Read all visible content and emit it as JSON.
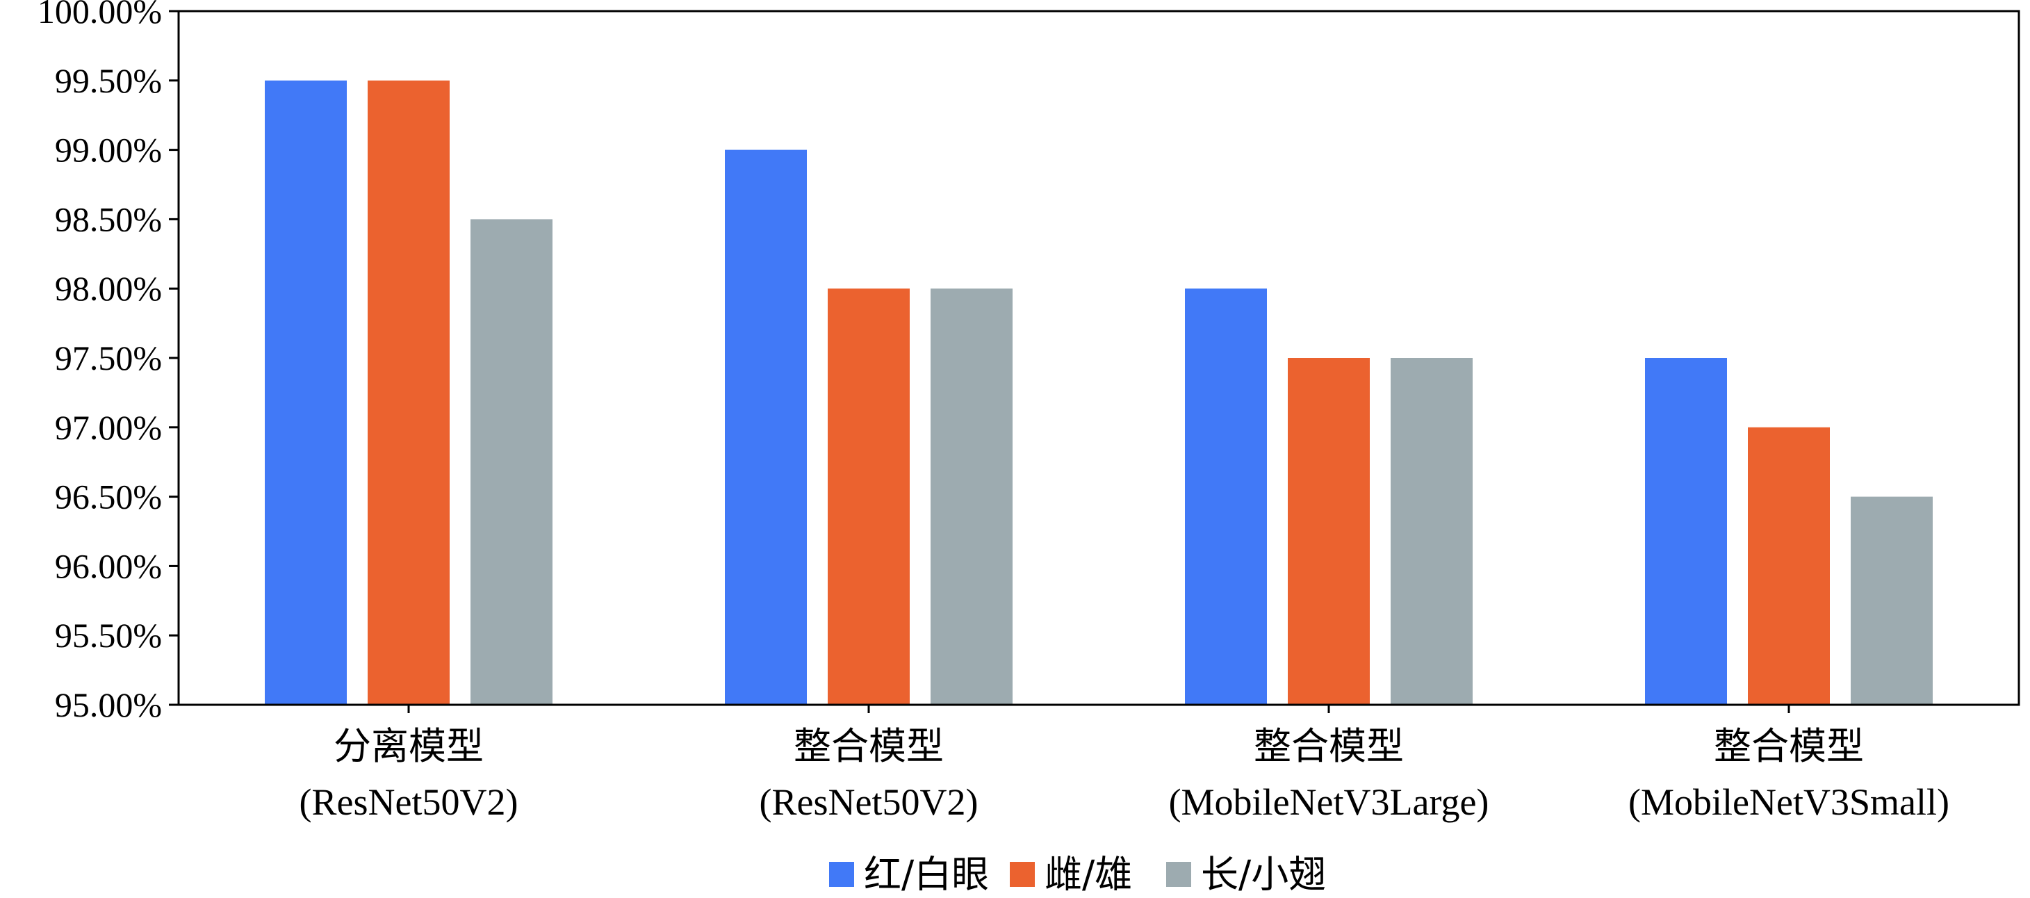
{
  "chart_data": {
    "type": "bar",
    "categories": [
      [
        "分离模型",
        "(ResNet50V2)"
      ],
      [
        "整合模型",
        "(ResNet50V2)"
      ],
      [
        "整合模型",
        "(MobileNetV3Large)"
      ],
      [
        "整合模型",
        "(MobileNetV3Small)"
      ]
    ],
    "series": [
      {
        "name": "红/白眼",
        "color": "#4179f7",
        "values": [
          99.5,
          99.0,
          98.0,
          97.5
        ]
      },
      {
        "name": "雌/雄",
        "color": "#eb622f",
        "values": [
          99.5,
          98.0,
          97.5,
          97.0
        ]
      },
      {
        "name": "长/小翅",
        "color": "#9dabb0",
        "values": [
          98.5,
          98.0,
          97.5,
          96.5
        ]
      }
    ],
    "ylim": [
      95.0,
      100.0
    ],
    "yticks": [
      "95.00%",
      "95.50%",
      "96.00%",
      "96.50%",
      "97.00%",
      "97.50%",
      "98.00%",
      "98.50%",
      "99.00%",
      "99.50%",
      "100.00%"
    ],
    "title": "",
    "xlabel": "",
    "ylabel": "",
    "legend": "bottom-center",
    "grid": false
  }
}
